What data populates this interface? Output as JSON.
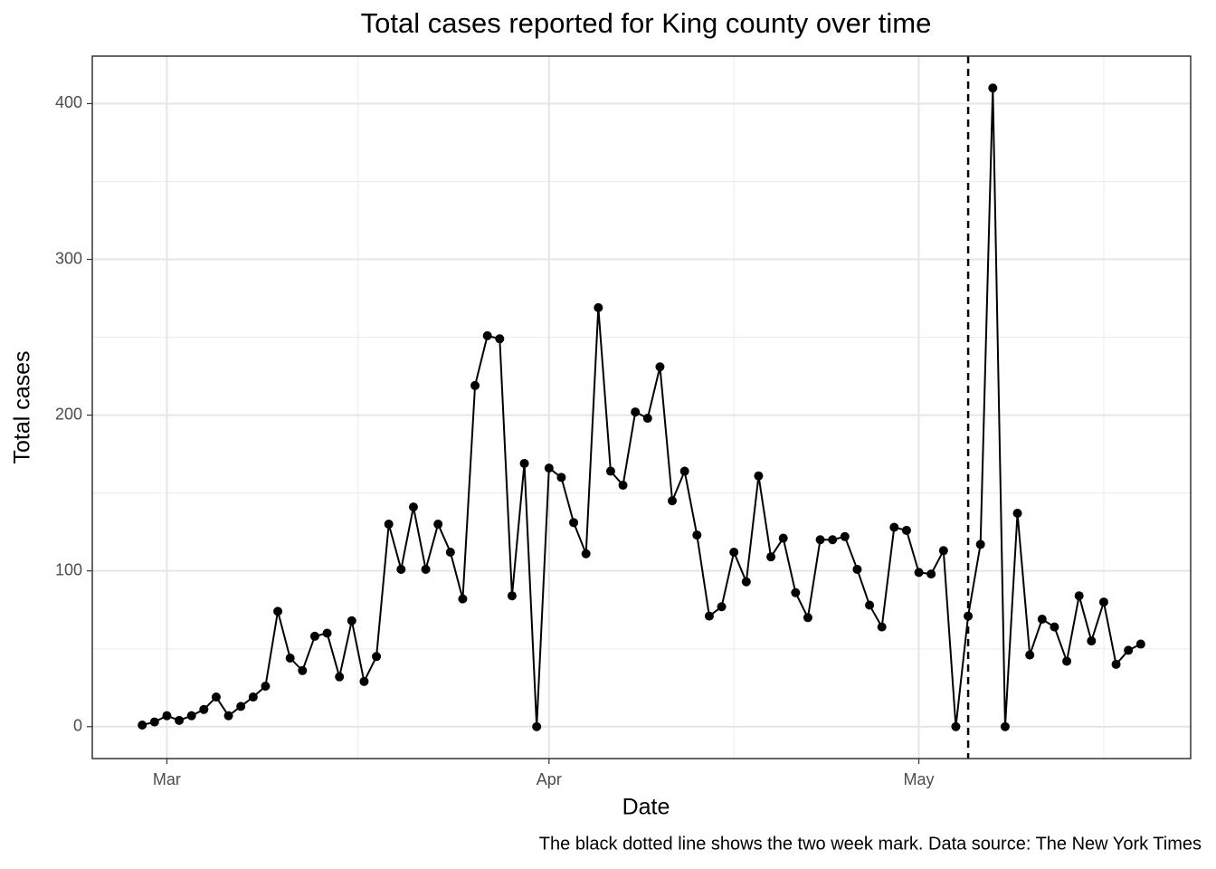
{
  "chart_data": {
    "type": "line",
    "title": "Total cases reported for King county over time",
    "x_label": "Date",
    "y_label": "Total cases",
    "caption": "The black dotted line shows the two week mark. Data source: The New York Times",
    "categories": [
      null,
      null,
      "Mar",
      null,
      null,
      null,
      null,
      null,
      null,
      null,
      null,
      null,
      null,
      null,
      null,
      null,
      null,
      null,
      null,
      null,
      null,
      null,
      null,
      null,
      null,
      null,
      null,
      null,
      null,
      null,
      null,
      null,
      null,
      "Apr",
      null,
      null,
      null,
      null,
      null,
      null,
      null,
      null,
      null,
      null,
      null,
      null,
      null,
      null,
      null,
      null,
      null,
      null,
      null,
      null,
      null,
      null,
      null,
      null,
      null,
      null,
      null,
      null,
      null,
      "May",
      null,
      null,
      null,
      null,
      null,
      null,
      null,
      null,
      null,
      null,
      null,
      null,
      null,
      null,
      null,
      null,
      null,
      null
    ],
    "series": [
      {
        "name": "Total cases",
        "color": "#000000",
        "values": [
          1,
          3,
          7,
          4,
          7,
          11,
          19,
          7,
          13,
          19,
          26,
          74,
          44,
          36,
          58,
          60,
          32,
          68,
          29,
          45,
          130,
          101,
          141,
          101,
          130,
          112,
          82,
          219,
          251,
          249,
          84,
          169,
          0,
          166,
          160,
          131,
          111,
          269,
          164,
          155,
          202,
          198,
          231,
          145,
          164,
          123,
          71,
          77,
          112,
          93,
          161,
          109,
          121,
          86,
          70,
          120,
          120,
          122,
          101,
          78,
          64,
          128,
          126,
          99,
          98,
          113,
          0,
          71,
          117,
          410,
          0,
          137,
          46,
          69,
          64,
          42,
          84,
          55,
          80,
          40,
          49,
          53
        ]
      }
    ],
    "reference_line": {
      "x_index": 67,
      "color": "#000000",
      "style": "dashed"
    },
    "ylim": [
      -20.5,
      430.5
    ],
    "yticks": [
      0,
      100,
      200,
      300,
      400
    ],
    "grid": true
  }
}
